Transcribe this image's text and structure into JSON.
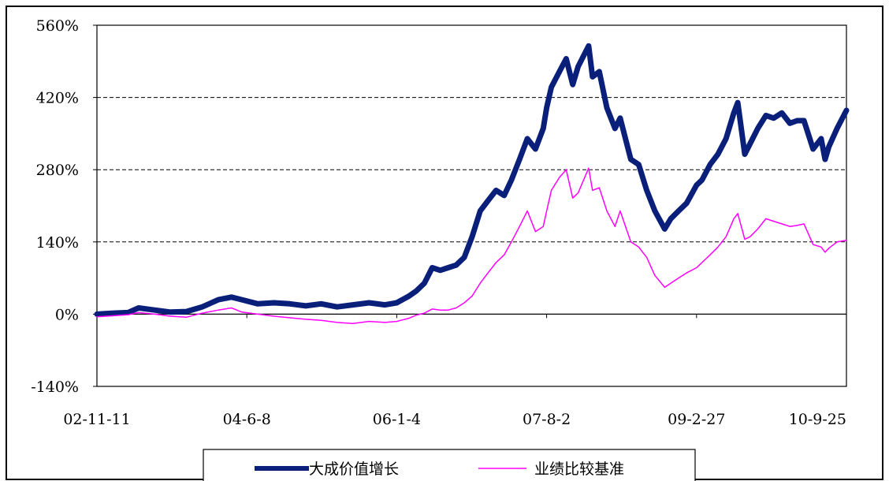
{
  "chart_data": {
    "type": "line",
    "title": "",
    "xlabel": "",
    "ylabel": "",
    "x_tick_labels": [
      "02-11-11",
      "04-6-8",
      "06-1-4",
      "07-8-2",
      "09-2-27",
      "10-9-25"
    ],
    "x_range": [
      "2002-11-11",
      "2010-09-25"
    ],
    "y_tick_labels": [
      "560%",
      "420%",
      "280%",
      "140%",
      "0%",
      "-140%"
    ],
    "y_ticks": [
      560,
      420,
      280,
      140,
      0,
      -140
    ],
    "ylim": [
      -140,
      560
    ],
    "y_unit": "%",
    "grid": "dashed horizontal lines at 140%, 280%, 420%",
    "legend": {
      "placement": "bottom-center"
    },
    "series": [
      {
        "name": "大成价值增长",
        "color": "#0a1f7a",
        "style": "thick",
        "points": [
          [
            "2002-11-11",
            0
          ],
          [
            "2003-01-15",
            2
          ],
          [
            "2003-03-10",
            3
          ],
          [
            "2003-04-20",
            12
          ],
          [
            "2003-06-20",
            8
          ],
          [
            "2003-08-20",
            4
          ],
          [
            "2003-10-20",
            5
          ],
          [
            "2003-12-20",
            14
          ],
          [
            "2004-02-20",
            28
          ],
          [
            "2004-04-10",
            33
          ],
          [
            "2004-05-20",
            28
          ],
          [
            "2004-07-20",
            20
          ],
          [
            "2004-09-20",
            22
          ],
          [
            "2004-11-20",
            20
          ],
          [
            "2005-01-20",
            16
          ],
          [
            "2005-03-20",
            20
          ],
          [
            "2005-05-20",
            14
          ],
          [
            "2005-07-20",
            18
          ],
          [
            "2005-09-20",
            22
          ],
          [
            "2005-11-20",
            18
          ],
          [
            "2006-01-04",
            22
          ],
          [
            "2006-02-20",
            35
          ],
          [
            "2006-03-20",
            45
          ],
          [
            "2006-04-20",
            60
          ],
          [
            "2006-05-20",
            90
          ],
          [
            "2006-06-20",
            85
          ],
          [
            "2006-07-20",
            90
          ],
          [
            "2006-08-20",
            95
          ],
          [
            "2006-09-20",
            110
          ],
          [
            "2006-10-20",
            150
          ],
          [
            "2006-11-20",
            200
          ],
          [
            "2006-12-20",
            220
          ],
          [
            "2007-01-20",
            240
          ],
          [
            "2007-02-20",
            230
          ],
          [
            "2007-03-20",
            260
          ],
          [
            "2007-04-20",
            300
          ],
          [
            "2007-05-20",
            340
          ],
          [
            "2007-06-20",
            320
          ],
          [
            "2007-07-20",
            360
          ],
          [
            "2007-08-02",
            400
          ],
          [
            "2007-08-20",
            440
          ],
          [
            "2007-09-20",
            470
          ],
          [
            "2007-10-16",
            495
          ],
          [
            "2007-11-10",
            445
          ],
          [
            "2007-12-01",
            480
          ],
          [
            "2008-01-10",
            520
          ],
          [
            "2008-01-25",
            460
          ],
          [
            "2008-02-20",
            470
          ],
          [
            "2008-03-20",
            400
          ],
          [
            "2008-04-20",
            360
          ],
          [
            "2008-05-10",
            380
          ],
          [
            "2008-06-20",
            300
          ],
          [
            "2008-07-20",
            290
          ],
          [
            "2008-08-20",
            240
          ],
          [
            "2008-09-20",
            200
          ],
          [
            "2008-10-28",
            165
          ],
          [
            "2008-11-20",
            185
          ],
          [
            "2008-12-20",
            200
          ],
          [
            "2009-01-20",
            215
          ],
          [
            "2009-02-27",
            250
          ],
          [
            "2009-03-20",
            260
          ],
          [
            "2009-04-20",
            290
          ],
          [
            "2009-05-20",
            310
          ],
          [
            "2009-06-20",
            340
          ],
          [
            "2009-07-20",
            390
          ],
          [
            "2009-08-04",
            410
          ],
          [
            "2009-08-31",
            310
          ],
          [
            "2009-09-20",
            330
          ],
          [
            "2009-10-20",
            360
          ],
          [
            "2009-11-20",
            385
          ],
          [
            "2009-12-20",
            380
          ],
          [
            "2010-01-20",
            390
          ],
          [
            "2010-02-20",
            370
          ],
          [
            "2010-03-20",
            375
          ],
          [
            "2010-04-15",
            375
          ],
          [
            "2010-05-20",
            320
          ],
          [
            "2010-06-20",
            340
          ],
          [
            "2010-07-05",
            300
          ],
          [
            "2010-07-20",
            325
          ],
          [
            "2010-08-20",
            360
          ],
          [
            "2010-09-25",
            395
          ]
        ]
      },
      {
        "name": "业绩比较基准",
        "color": "#ff00ff",
        "style": "thin",
        "points": [
          [
            "2002-11-11",
            -5
          ],
          [
            "2003-01-15",
            -3
          ],
          [
            "2003-03-10",
            -1
          ],
          [
            "2003-04-20",
            3
          ],
          [
            "2003-06-20",
            0
          ],
          [
            "2003-08-20",
            -4
          ],
          [
            "2003-10-20",
            -6
          ],
          [
            "2003-12-20",
            2
          ],
          [
            "2004-02-20",
            8
          ],
          [
            "2004-04-10",
            12
          ],
          [
            "2004-05-20",
            4
          ],
          [
            "2004-07-20",
            0
          ],
          [
            "2004-09-20",
            -4
          ],
          [
            "2004-11-20",
            -7
          ],
          [
            "2005-01-20",
            -10
          ],
          [
            "2005-03-20",
            -12
          ],
          [
            "2005-05-20",
            -16
          ],
          [
            "2005-07-20",
            -18
          ],
          [
            "2005-09-20",
            -14
          ],
          [
            "2005-11-20",
            -16
          ],
          [
            "2006-01-04",
            -14
          ],
          [
            "2006-02-20",
            -8
          ],
          [
            "2006-03-20",
            -2
          ],
          [
            "2006-04-20",
            2
          ],
          [
            "2006-05-20",
            10
          ],
          [
            "2006-06-20",
            8
          ],
          [
            "2006-07-20",
            8
          ],
          [
            "2006-08-20",
            12
          ],
          [
            "2006-09-20",
            22
          ],
          [
            "2006-10-20",
            35
          ],
          [
            "2006-11-20",
            60
          ],
          [
            "2006-12-20",
            80
          ],
          [
            "2007-01-20",
            100
          ],
          [
            "2007-02-20",
            115
          ],
          [
            "2007-03-20",
            140
          ],
          [
            "2007-04-20",
            170
          ],
          [
            "2007-05-20",
            200
          ],
          [
            "2007-06-20",
            160
          ],
          [
            "2007-07-20",
            170
          ],
          [
            "2007-08-02",
            200
          ],
          [
            "2007-08-20",
            240
          ],
          [
            "2007-09-20",
            265
          ],
          [
            "2007-10-16",
            280
          ],
          [
            "2007-11-10",
            225
          ],
          [
            "2007-12-01",
            235
          ],
          [
            "2008-01-10",
            283
          ],
          [
            "2008-01-25",
            240
          ],
          [
            "2008-02-20",
            245
          ],
          [
            "2008-03-20",
            200
          ],
          [
            "2008-04-20",
            170
          ],
          [
            "2008-05-10",
            200
          ],
          [
            "2008-06-20",
            140
          ],
          [
            "2008-07-20",
            130
          ],
          [
            "2008-08-20",
            110
          ],
          [
            "2008-09-20",
            75
          ],
          [
            "2008-10-28",
            52
          ],
          [
            "2008-11-20",
            60
          ],
          [
            "2008-12-20",
            70
          ],
          [
            "2009-01-20",
            80
          ],
          [
            "2009-02-27",
            90
          ],
          [
            "2009-03-20",
            100
          ],
          [
            "2009-04-20",
            115
          ],
          [
            "2009-05-20",
            130
          ],
          [
            "2009-06-20",
            150
          ],
          [
            "2009-07-20",
            185
          ],
          [
            "2009-08-04",
            195
          ],
          [
            "2009-08-31",
            145
          ],
          [
            "2009-09-20",
            150
          ],
          [
            "2009-10-20",
            165
          ],
          [
            "2009-11-20",
            185
          ],
          [
            "2009-12-20",
            180
          ],
          [
            "2010-01-20",
            175
          ],
          [
            "2010-02-20",
            170
          ],
          [
            "2010-03-20",
            172
          ],
          [
            "2010-04-15",
            175
          ],
          [
            "2010-05-20",
            135
          ],
          [
            "2010-06-20",
            130
          ],
          [
            "2010-07-05",
            120
          ],
          [
            "2010-07-20",
            128
          ],
          [
            "2010-08-20",
            140
          ],
          [
            "2010-09-25",
            143
          ]
        ]
      }
    ]
  }
}
